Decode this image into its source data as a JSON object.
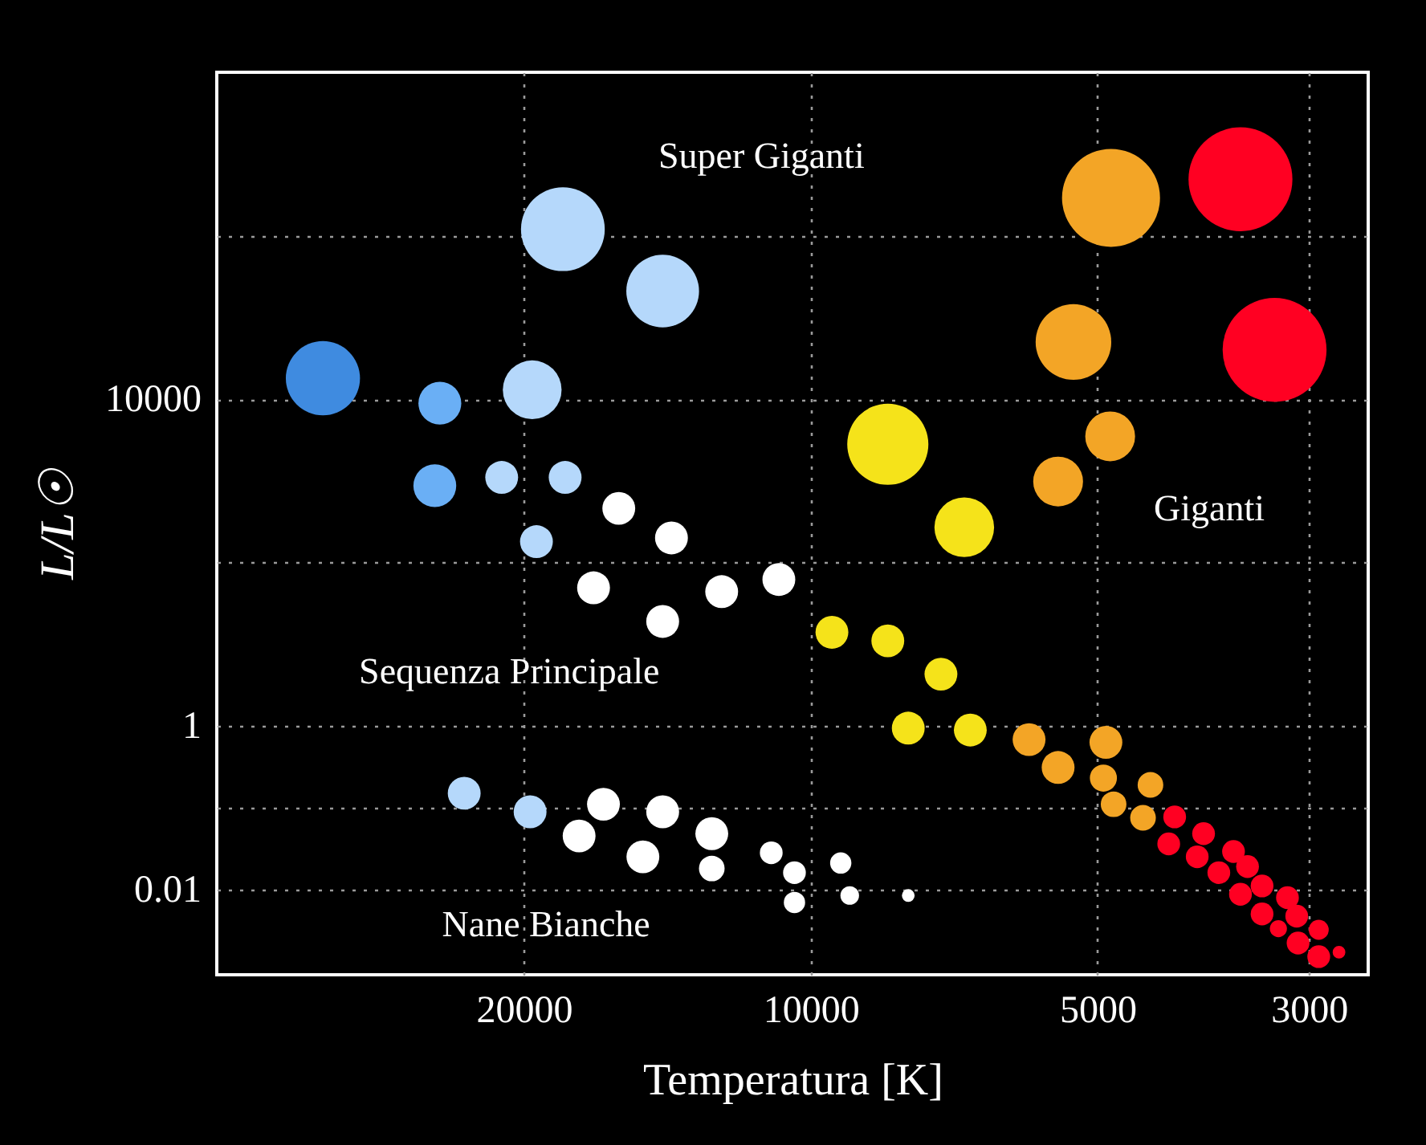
{
  "chart_data": {
    "type": "bubble",
    "xlabel": "Temperatura [K]",
    "ylabel": "L/L☉",
    "log": "xy",
    "grid": true,
    "legend": false,
    "marker": "circle",
    "xlim": [
      42000,
      2600
    ],
    "xticks": [
      20000,
      10000,
      5000,
      3000
    ],
    "ylim": [
      0.0009,
      100000000
    ],
    "yticks": [
      {
        "value": 1000000,
        "label": null
      },
      10000,
      {
        "value": 100,
        "label": null
      },
      1,
      {
        "value": 0.1,
        "label": null
      },
      0.01
    ],
    "annotations": [
      "Super Giganti",
      "Giganti",
      "Sequenza Principale",
      "Nane Bianche"
    ],
    "series": [
      {
        "color": "#3f8be0",
        "x": [
          32500
        ],
        "values": [
          18000
        ],
        "sizes": [
          0.51
        ]
      },
      {
        "color": "#6aaff5",
        "x": [
          24500,
          24800
        ],
        "values": [
          8900,
          870
        ],
        "sizes": [
          0.17,
          0.17
        ]
      },
      {
        "color": "#b5d8fb",
        "x": [
          18200,
          14300,
          19600,
          21100,
          18100,
          19400,
          23100,
          19700
        ],
        "values": [
          1200000,
          210000,
          13000,
          1100,
          1100,
          180,
          0.15,
          0.089
        ],
        "sizes": [
          0.65,
          0.49,
          0.32,
          0.1,
          0.1,
          0.1,
          0.1,
          0.1
        ]
      },
      {
        "color": "#ffffff",
        "x": [
          15900,
          14000,
          16900,
          14300,
          12400,
          10800,
          16500,
          14300,
          17500,
          12700,
          15000,
          12700,
          11000,
          10400,
          9300,
          10400,
          9100,
          7900
        ],
        "values": [
          460,
          200,
          49,
          19,
          44,
          62,
          0.11,
          0.089,
          0.045,
          0.048,
          0.025,
          0.018,
          0.028,
          0.016,
          0.021,
          0.0069,
          0.0084,
          0.0084
        ],
        "sizes": [
          0.1,
          0.1,
          0.1,
          0.1,
          0.1,
          0.1,
          0.1,
          0.1,
          0.1,
          0.1,
          0.1,
          0.061,
          0.048,
          0.048,
          0.042,
          0.042,
          0.032,
          0.015
        ]
      },
      {
        "color": "#f5e31a",
        "x": [
          9500,
          8300,
          7300,
          7900,
          6800,
          8300,
          6900
        ],
        "values": [
          14,
          11,
          4.3,
          0.94,
          0.89,
          2800,
          270
        ],
        "sizes": [
          0.1,
          0.1,
          0.1,
          0.1,
          0.1,
          0.61,
          0.33
        ]
      },
      {
        "color": "#f3a526",
        "x": [
          4840,
          5300,
          4850,
          5500,
          5900,
          4900,
          5500,
          4930,
          4400,
          4810,
          4480
        ],
        "values": [
          2900000,
          50000,
          3500,
          980,
          0.68,
          0.63,
          0.31,
          0.23,
          0.19,
          0.11,
          0.075
        ],
        "sizes": [
          0.89,
          0.53,
          0.23,
          0.23,
          0.1,
          0.1,
          0.1,
          0.068,
          0.061,
          0.061,
          0.061
        ]
      },
      {
        "color": "#ff0022",
        "x": [
          3540,
          3260,
          4150,
          3870,
          4210,
          3600,
          3930,
          3480,
          3730,
          3360,
          3540,
          3160,
          3360,
          3090,
          3230,
          2930,
          3080,
          2930,
          2790
        ],
        "values": [
          4900000,
          40000,
          0.077,
          0.048,
          0.036,
          0.029,
          0.025,
          0.019,
          0.016,
          0.011,
          0.0087,
          0.0079,
          0.005,
          0.0047,
          0.0033,
          0.0032,
          0.0022,
          0.0015,
          0.0017
        ],
        "sizes": [
          1,
          1,
          0.048,
          0.048,
          0.048,
          0.048,
          0.048,
          0.048,
          0.048,
          0.048,
          0.048,
          0.048,
          0.048,
          0.048,
          0.027,
          0.037,
          0.048,
          0.048,
          0.015
        ]
      }
    ]
  }
}
